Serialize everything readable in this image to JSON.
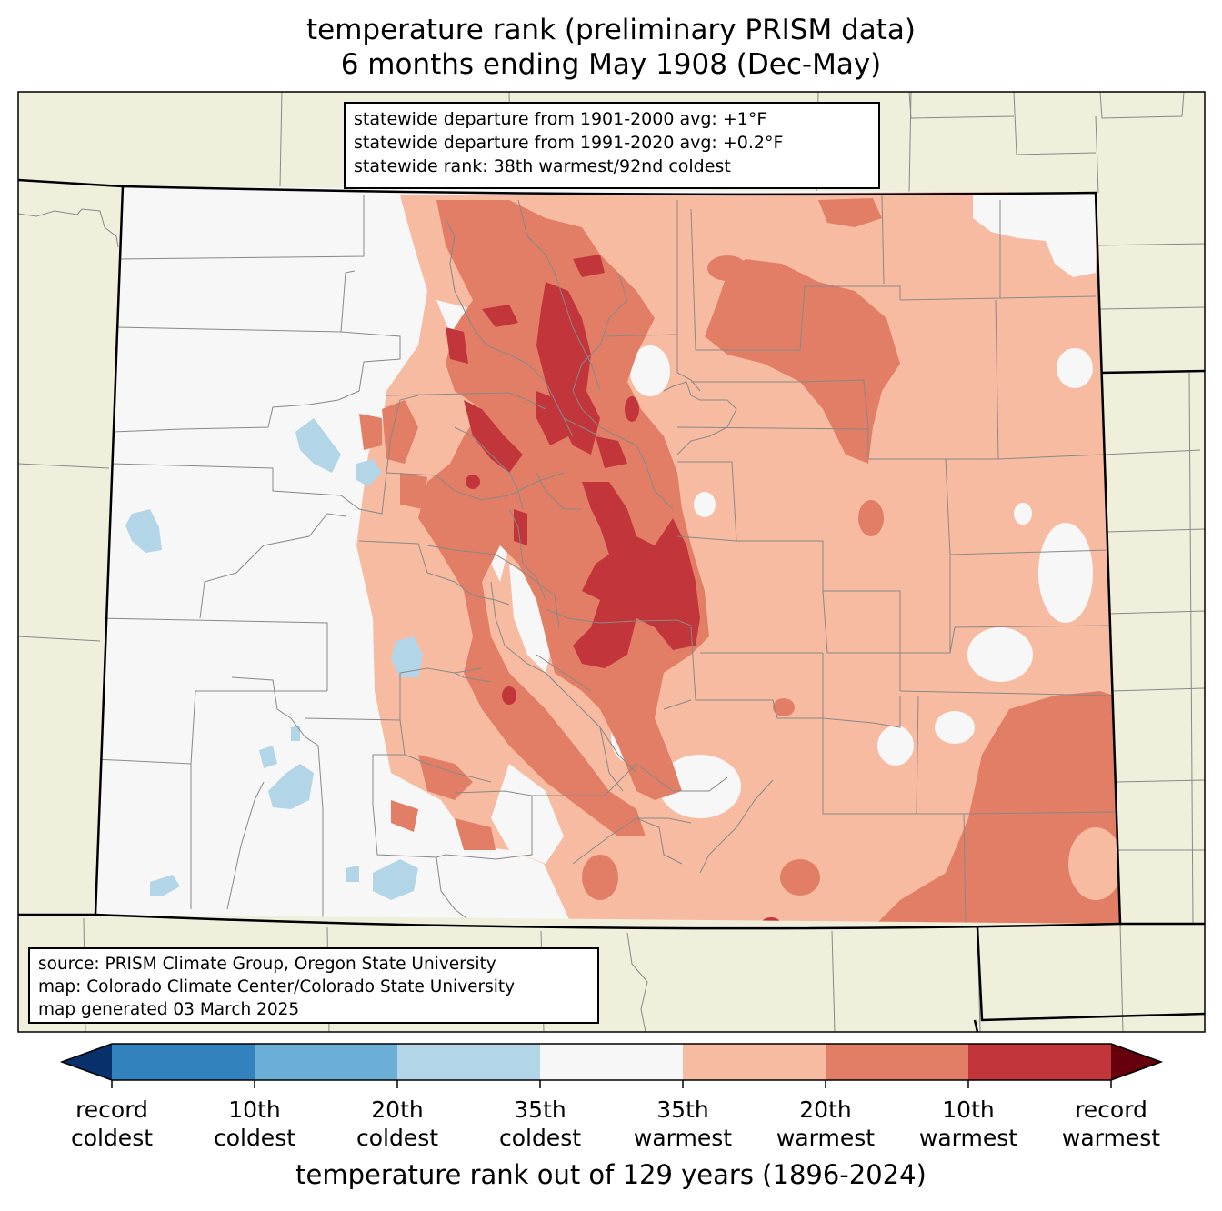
{
  "title": {
    "line1": "temperature rank (preliminary PRISM data)",
    "line2": "6 months ending May 1908 (Dec-May)"
  },
  "stats": {
    "line1": "statewide departure from 1901-2000 avg: +1°F",
    "line2": "statewide departure from 1991-2020 avg: +0.2°F",
    "line3": "statewide rank: 38th warmest/92nd coldest"
  },
  "source": {
    "line1": "source: PRISM Climate Group, Oregon State University",
    "line2": "map: Colorado Climate Center/Colorado State University",
    "line3": "map generated 03 March 2025"
  },
  "colorbar": {
    "label": "temperature rank out of 129 years (1896-2024)",
    "ticks": [
      {
        "line1": "record",
        "line2": "coldest"
      },
      {
        "line1": "10th",
        "line2": "coldest"
      },
      {
        "line1": "20th",
        "line2": "coldest"
      },
      {
        "line1": "35th",
        "line2": "coldest"
      },
      {
        "line1": "35th",
        "line2": "warmest"
      },
      {
        "line1": "20th",
        "line2": "warmest"
      },
      {
        "line1": "10th",
        "line2": "warmest"
      },
      {
        "line1": "record",
        "line2": "warmest"
      }
    ],
    "colors": {
      "below_record_coldest": "#08306b",
      "record_to_10th_coldest": "#3182bd",
      "10th_to_20th_coldest": "#6baed6",
      "20th_to_35th_coldest": "#b3d5e8",
      "near_normal": "#f7f7f7",
      "35th_to_20th_warmest": "#f7bba1",
      "20th_to_10th_warmest": "#e27e66",
      "10th_to_record_warmest": "#c2363b",
      "above_record_warmest": "#67000d"
    }
  },
  "map_colors": {
    "background_land": "#f0efdc",
    "county_lines": "#888888",
    "state_lines": "#000000"
  }
}
